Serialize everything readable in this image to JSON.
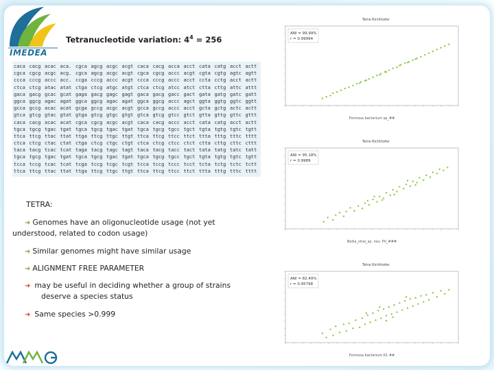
{
  "logo": {
    "text": "IMEDEA"
  },
  "title": {
    "main": "Tetranucleotide variation: 4",
    "sup": "4",
    "rest": " = 256"
  },
  "tetra_table": {
    "rows": [
      [
        "caca",
        "cacg",
        "acac",
        "aca.",
        "cgca",
        "agcg",
        "acgc",
        "acgt",
        "caca",
        "cacg",
        "acca",
        "acct",
        "cata",
        "catg",
        "acct",
        "actt"
      ],
      [
        "cgca",
        "cgcg",
        "acgc",
        "acg.",
        "cgca",
        "agcg",
        "acgc",
        "acgt",
        "cgca",
        "cgcg",
        "accc",
        "acgt",
        "cgta",
        "cgtg",
        "agtc",
        "agtt"
      ],
      [
        "ccca",
        "cccg",
        "accc",
        "acc.",
        "ccga",
        "cccg",
        "accc",
        "acgt",
        "ccca",
        "cccg",
        "accc",
        "acct",
        "ccta",
        "cctg",
        "acct",
        "actt"
      ],
      [
        "ctca",
        "ctcg",
        "atac",
        "atat",
        "ctga",
        "ctcg",
        "atgc",
        "atgt",
        "ctca",
        "ctcg",
        "atcc",
        "atct",
        "ctta",
        "cttg",
        "attc",
        "attt"
      ],
      [
        "gaca",
        "gacg",
        "gcac",
        "gcat",
        "gaga",
        "gacg",
        "gagc",
        "gagt",
        "gaca",
        "gacg",
        "gacc",
        "gact",
        "gata",
        "gatg",
        "gatc",
        "gatt"
      ],
      [
        "ggca",
        "ggcg",
        "agac",
        "agat",
        "ggca",
        "ggcg",
        "agac",
        "agat",
        "ggca",
        "ggcg",
        "accc",
        "agct",
        "ggta",
        "ggtg",
        "ggtc",
        "ggtt"
      ],
      [
        "gcca",
        "gccg",
        "acac",
        "acat",
        "gcga",
        "gccg",
        "acgc",
        "acgt",
        "gcca",
        "gccg",
        "accc",
        "acct",
        "gcta",
        "gctg",
        "actc",
        "actt"
      ],
      [
        "gtca",
        "gtcg",
        "gtac",
        "gtat",
        "gtga",
        "gtcg",
        "gtgc",
        "gtgt",
        "gtca",
        "gtcg",
        "gtcc",
        "gtct",
        "gtta",
        "gttg",
        "gttc",
        "gttt"
      ],
      [
        "caca",
        "cacg",
        "acac",
        "acat",
        "cgca",
        "cgcg",
        "acgc",
        "acgt",
        "caca",
        "cacg",
        "accc",
        "acct",
        "cata",
        "catg",
        "acct",
        "actt"
      ],
      [
        "tgca",
        "tgcg",
        "tgac",
        "tgat",
        "tgca",
        "tgcg",
        "tgac",
        "tgat",
        "tgca",
        "tgcg",
        "tgcc",
        "tgct",
        "tgta",
        "tgtg",
        "tgtc",
        "tgtt"
      ],
      [
        "ttca",
        "ttcg",
        "ttac",
        "ttat",
        "ttga",
        "ttcg",
        "ttgc",
        "ttgt",
        "ttca",
        "ttcg",
        "ttcc",
        "ttct",
        "ttta",
        "tttg",
        "tttc",
        "tttt"
      ],
      [
        "ctca",
        "ctcg",
        "ctac",
        "ctat",
        "ctga",
        "ctcg",
        "ctgc",
        "ctgt",
        "ctca",
        "ctcg",
        "ctcc",
        "ctct",
        "ctta",
        "cttg",
        "cttc",
        "cttt"
      ],
      [
        "taca",
        "tacg",
        "tcac",
        "tcat",
        "taga",
        "tacg",
        "tagc",
        "tagt",
        "taca",
        "tacg",
        "tacc",
        "tact",
        "tata",
        "tatg",
        "tatc",
        "tatt"
      ],
      [
        "tgca",
        "tgcg",
        "tgac",
        "tgat",
        "tgca",
        "tgcg",
        "tgac",
        "tgat",
        "tgca",
        "tgcg",
        "tgcc",
        "tgct",
        "tgta",
        "tgtg",
        "tgtc",
        "tgtt"
      ],
      [
        "tcca",
        "tccg",
        "tcac",
        "tcat",
        "tcga",
        "tccg",
        "tcgc",
        "tcgt",
        "tcca",
        "tccg",
        "tccc",
        "tcct",
        "tcta",
        "tctg",
        "tctc",
        "tctt"
      ],
      [
        "ttca",
        "ttcg",
        "ttac",
        "ttat",
        "ttga",
        "ttcg",
        "ttgc",
        "ttgt",
        "ttca",
        "ttcg",
        "ttcc",
        "ttct",
        "ttta",
        "tttg",
        "tttc",
        "tttt"
      ]
    ]
  },
  "text": {
    "heading": "TETRA:",
    "b1_line1": "Genomes have an oligonucleotide usage (not yet",
    "b1_line2": "understood, related to codon usage)",
    "b2": "Similar genomes might have similar usage",
    "b3": "ALIGNMENT FREE PARAMETER",
    "b4_line1": "may be useful in deciding whether a group of strains",
    "b4_line2": "deserve a species status",
    "b5": "Same species >0.999"
  },
  "plots": [
    {
      "title": "Tetra Richthofer",
      "stats": [
        "ANI = 99.99%",
        "r = 0.99994"
      ],
      "xlabel": "Formosa bacterium sp_##",
      "points": [
        [
          0.02,
          0.05
        ],
        [
          0.05,
          0.08
        ],
        [
          0.08,
          0.1
        ],
        [
          0.1,
          0.14
        ],
        [
          0.13,
          0.16
        ],
        [
          0.16,
          0.19
        ],
        [
          0.19,
          0.22
        ],
        [
          0.22,
          0.24
        ],
        [
          0.25,
          0.27
        ],
        [
          0.28,
          0.3
        ],
        [
          0.31,
          0.33
        ],
        [
          0.34,
          0.35
        ],
        [
          0.37,
          0.38
        ],
        [
          0.4,
          0.41
        ],
        [
          0.43,
          0.44
        ],
        [
          0.46,
          0.47
        ],
        [
          0.49,
          0.5
        ],
        [
          0.52,
          0.53
        ],
        [
          0.55,
          0.56
        ],
        [
          0.58,
          0.58
        ],
        [
          0.61,
          0.62
        ],
        [
          0.64,
          0.65
        ],
        [
          0.67,
          0.67
        ],
        [
          0.7,
          0.7
        ],
        [
          0.73,
          0.73
        ],
        [
          0.76,
          0.76
        ],
        [
          0.79,
          0.79
        ],
        [
          0.82,
          0.82
        ],
        [
          0.85,
          0.85
        ],
        [
          0.88,
          0.88
        ],
        [
          0.91,
          0.91
        ],
        [
          0.94,
          0.94
        ],
        [
          0.97,
          0.97
        ],
        [
          0.35,
          0.36
        ],
        [
          0.45,
          0.45
        ],
        [
          0.6,
          0.61
        ],
        [
          0.72,
          0.72
        ],
        [
          0.5,
          0.5
        ],
        [
          0.3,
          0.31
        ],
        [
          0.66,
          0.66
        ]
      ]
    },
    {
      "title": "Tetra Richthofer",
      "stats": [
        "ANI = 95.18%",
        "r = 0.9989"
      ],
      "xlabel": "Bellia_strai_sp. nov. PV_###",
      "points": [
        [
          0.03,
          0.05
        ],
        [
          0.06,
          0.12
        ],
        [
          0.1,
          0.08
        ],
        [
          0.12,
          0.16
        ],
        [
          0.15,
          0.2
        ],
        [
          0.18,
          0.14
        ],
        [
          0.2,
          0.22
        ],
        [
          0.23,
          0.28
        ],
        [
          0.26,
          0.23
        ],
        [
          0.29,
          0.31
        ],
        [
          0.32,
          0.27
        ],
        [
          0.34,
          0.36
        ],
        [
          0.37,
          0.33
        ],
        [
          0.4,
          0.42
        ],
        [
          0.43,
          0.38
        ],
        [
          0.45,
          0.47
        ],
        [
          0.48,
          0.44
        ],
        [
          0.5,
          0.53
        ],
        [
          0.53,
          0.49
        ],
        [
          0.55,
          0.58
        ],
        [
          0.58,
          0.55
        ],
        [
          0.6,
          0.63
        ],
        [
          0.63,
          0.6
        ],
        [
          0.65,
          0.67
        ],
        [
          0.68,
          0.64
        ],
        [
          0.7,
          0.72
        ],
        [
          0.73,
          0.7
        ],
        [
          0.75,
          0.78
        ],
        [
          0.78,
          0.74
        ],
        [
          0.8,
          0.82
        ],
        [
          0.83,
          0.79
        ],
        [
          0.85,
          0.87
        ],
        [
          0.88,
          0.85
        ],
        [
          0.9,
          0.92
        ],
        [
          0.93,
          0.9
        ],
        [
          0.96,
          0.95
        ],
        [
          0.41,
          0.47
        ],
        [
          0.56,
          0.5
        ],
        [
          0.66,
          0.73
        ],
        [
          0.47,
          0.41
        ],
        [
          0.72,
          0.66
        ],
        [
          0.36,
          0.4
        ]
      ]
    },
    {
      "title": "Tetra Richthofer",
      "stats": [
        "ANI = 82.49%",
        "r = 0.95798"
      ],
      "xlabel": "Formosa bacterium K1 ##",
      "points": [
        [
          0.02,
          0.1
        ],
        [
          0.05,
          0.02
        ],
        [
          0.08,
          0.18
        ],
        [
          0.1,
          0.06
        ],
        [
          0.12,
          0.24
        ],
        [
          0.15,
          0.12
        ],
        [
          0.18,
          0.28
        ],
        [
          0.2,
          0.15
        ],
        [
          0.22,
          0.3
        ],
        [
          0.25,
          0.2
        ],
        [
          0.27,
          0.36
        ],
        [
          0.3,
          0.22
        ],
        [
          0.32,
          0.4
        ],
        [
          0.34,
          0.28
        ],
        [
          0.36,
          0.46
        ],
        [
          0.38,
          0.32
        ],
        [
          0.4,
          0.5
        ],
        [
          0.42,
          0.36
        ],
        [
          0.44,
          0.55
        ],
        [
          0.46,
          0.4
        ],
        [
          0.48,
          0.58
        ],
        [
          0.5,
          0.45
        ],
        [
          0.52,
          0.62
        ],
        [
          0.54,
          0.48
        ],
        [
          0.56,
          0.66
        ],
        [
          0.58,
          0.52
        ],
        [
          0.6,
          0.7
        ],
        [
          0.62,
          0.56
        ],
        [
          0.64,
          0.74
        ],
        [
          0.66,
          0.6
        ],
        [
          0.68,
          0.78
        ],
        [
          0.7,
          0.64
        ],
        [
          0.72,
          0.8
        ],
        [
          0.74,
          0.68
        ],
        [
          0.76,
          0.84
        ],
        [
          0.78,
          0.72
        ],
        [
          0.8,
          0.86
        ],
        [
          0.82,
          0.76
        ],
        [
          0.85,
          0.9
        ],
        [
          0.88,
          0.82
        ],
        [
          0.91,
          0.94
        ],
        [
          0.94,
          0.88
        ],
        [
          0.97,
          0.96
        ],
        [
          0.35,
          0.5
        ],
        [
          0.5,
          0.35
        ],
        [
          0.65,
          0.82
        ],
        [
          0.45,
          0.62
        ],
        [
          0.55,
          0.42
        ]
      ]
    }
  ],
  "logo_bottom": {
    "name": "MMG"
  },
  "colors": {
    "accent": "#7fae3a",
    "bullet_red": "#d44a2e",
    "glow": "#96cde6",
    "points": "#8cc63f"
  }
}
